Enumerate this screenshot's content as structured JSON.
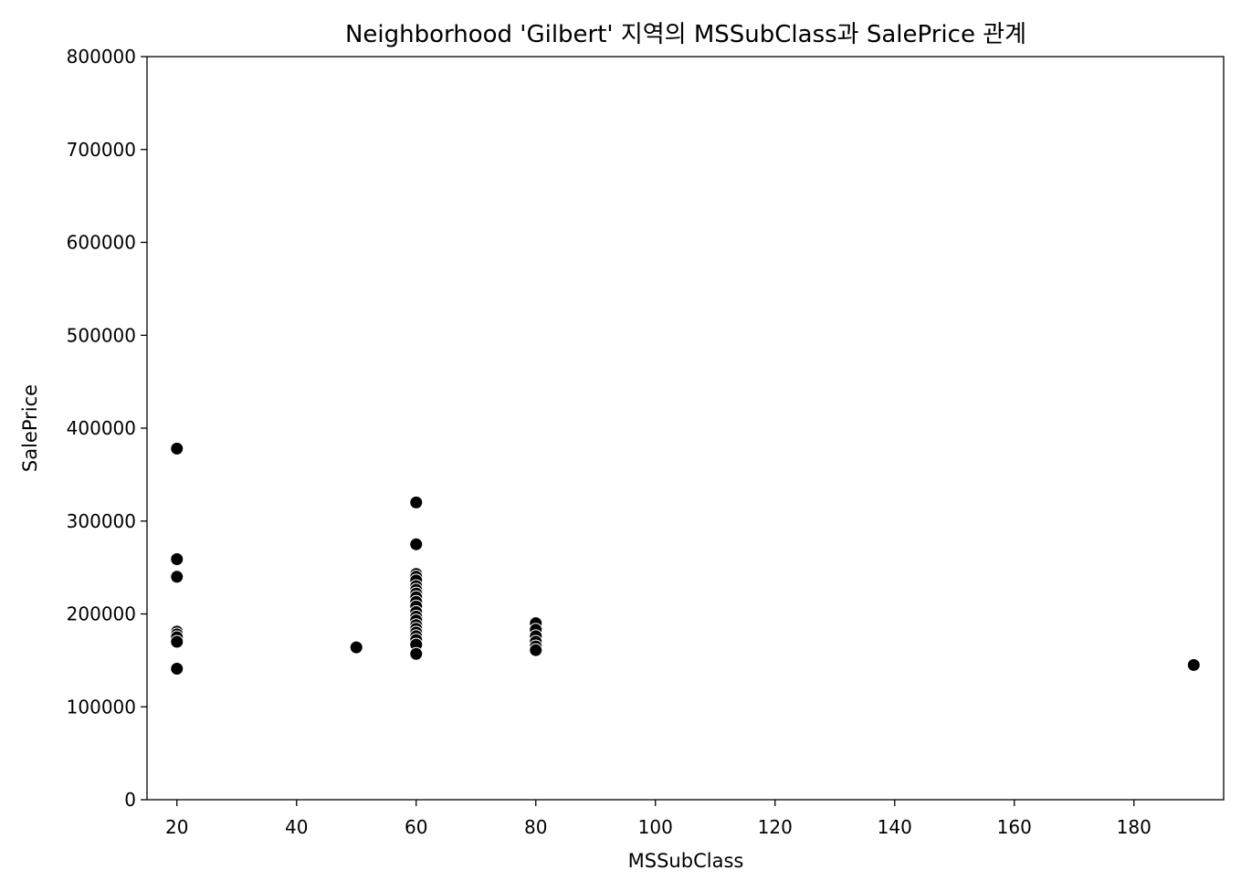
{
  "chart_data": {
    "type": "scatter",
    "title": "Neighborhood 'Gilbert' 지역의 MSSubClass과 SalePrice 관계",
    "xlabel": "MSSubClass",
    "ylabel": "SalePrice",
    "xlim": [
      15,
      195
    ],
    "ylim": [
      0,
      800000
    ],
    "xticks": [
      20,
      40,
      60,
      80,
      100,
      120,
      140,
      160,
      180
    ],
    "yticks": [
      0,
      100000,
      200000,
      300000,
      400000,
      500000,
      600000,
      700000,
      800000
    ],
    "grid": false,
    "marker_color": "#000000",
    "marker_edge_color": "#ffffff",
    "points": [
      {
        "x": 20,
        "y": 378000
      },
      {
        "x": 20,
        "y": 259000
      },
      {
        "x": 20,
        "y": 240000
      },
      {
        "x": 20,
        "y": 181000
      },
      {
        "x": 20,
        "y": 178000
      },
      {
        "x": 20,
        "y": 175000
      },
      {
        "x": 20,
        "y": 170000
      },
      {
        "x": 20,
        "y": 141000
      },
      {
        "x": 50,
        "y": 164000
      },
      {
        "x": 60,
        "y": 320000
      },
      {
        "x": 60,
        "y": 275000
      },
      {
        "x": 60,
        "y": 243000
      },
      {
        "x": 60,
        "y": 240000
      },
      {
        "x": 60,
        "y": 236000
      },
      {
        "x": 60,
        "y": 230000
      },
      {
        "x": 60,
        "y": 226000
      },
      {
        "x": 60,
        "y": 222000
      },
      {
        "x": 60,
        "y": 218000
      },
      {
        "x": 60,
        "y": 213000
      },
      {
        "x": 60,
        "y": 208000
      },
      {
        "x": 60,
        "y": 202000
      },
      {
        "x": 60,
        "y": 197000
      },
      {
        "x": 60,
        "y": 193000
      },
      {
        "x": 60,
        "y": 188000
      },
      {
        "x": 60,
        "y": 184000
      },
      {
        "x": 60,
        "y": 180000
      },
      {
        "x": 60,
        "y": 176000
      },
      {
        "x": 60,
        "y": 172000
      },
      {
        "x": 60,
        "y": 167000
      },
      {
        "x": 60,
        "y": 157000
      },
      {
        "x": 80,
        "y": 190000
      },
      {
        "x": 80,
        "y": 183000
      },
      {
        "x": 80,
        "y": 176000
      },
      {
        "x": 80,
        "y": 170000
      },
      {
        "x": 80,
        "y": 165000
      },
      {
        "x": 80,
        "y": 161000
      },
      {
        "x": 190,
        "y": 145000
      }
    ]
  }
}
